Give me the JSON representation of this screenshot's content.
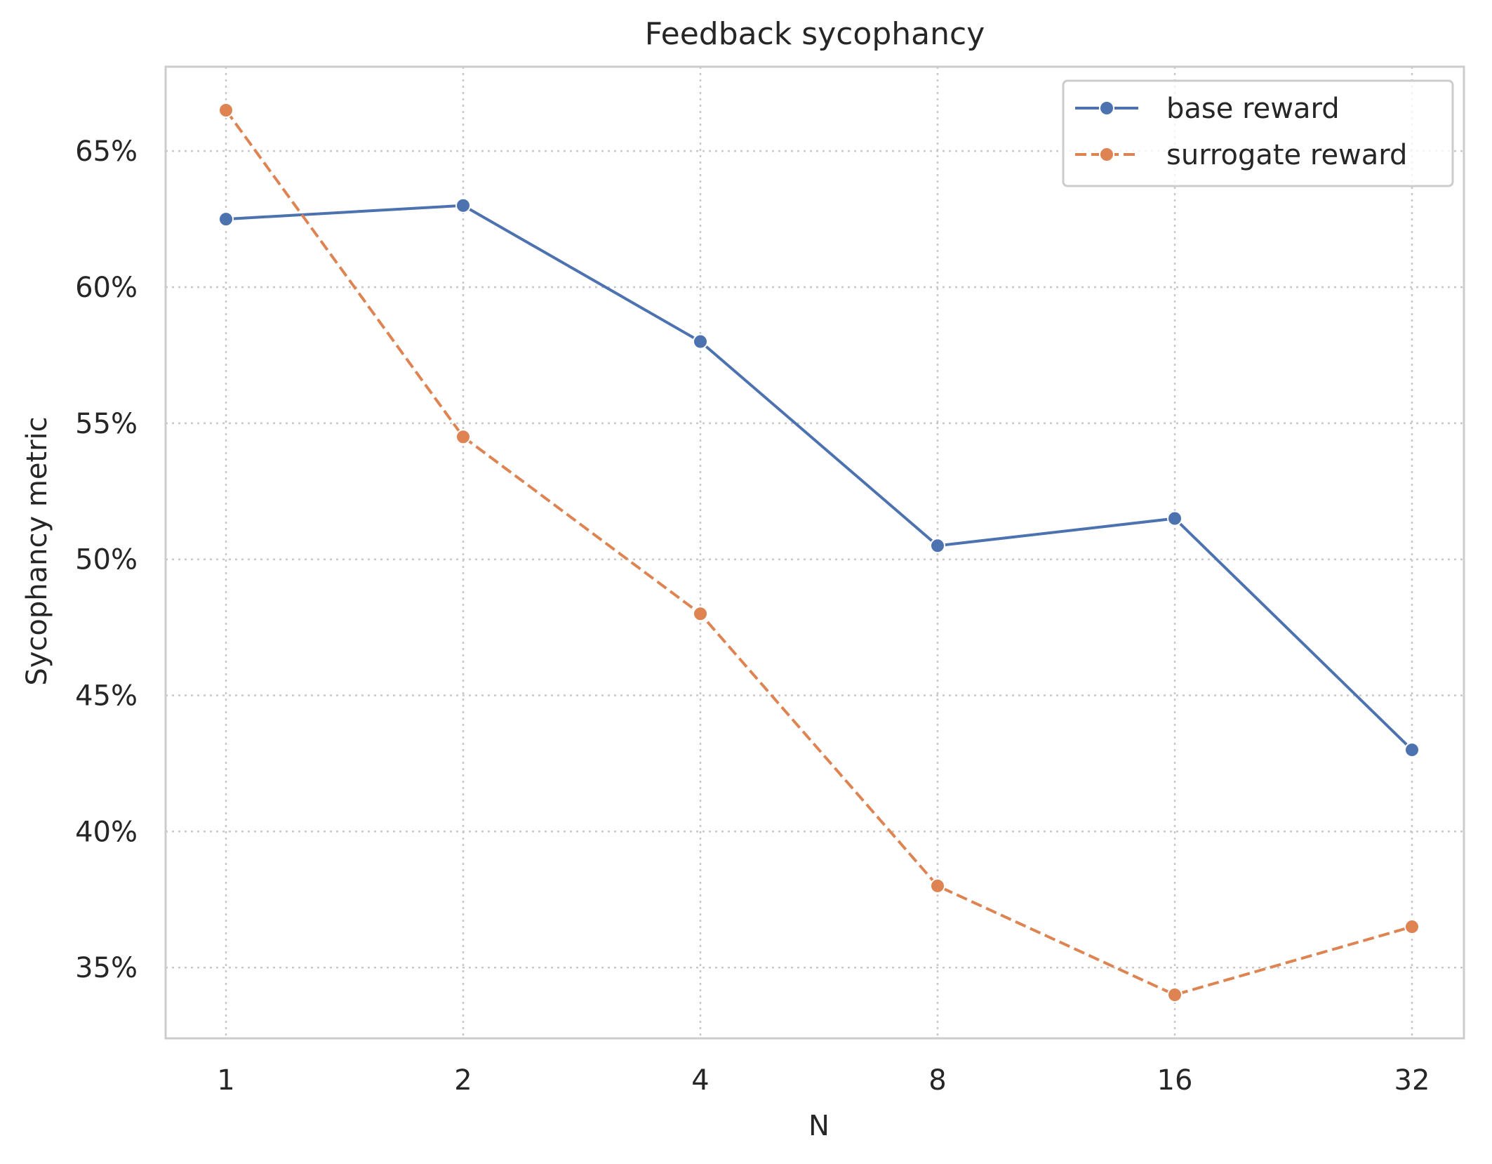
{
  "chart_data": {
    "type": "line",
    "title": "Feedback sycophancy",
    "xlabel": "N",
    "ylabel": "Sycophancy metric",
    "categories": [
      "1",
      "2",
      "4",
      "8",
      "16",
      "32"
    ],
    "x_scale": "log2",
    "y_unit": "%",
    "yticks": [
      35,
      40,
      45,
      50,
      55,
      60,
      65
    ],
    "ylim": [
      32.4,
      68.1
    ],
    "grid": true,
    "grid_style": "dotted",
    "legend_position": "top-right",
    "series": [
      {
        "name": "base reward",
        "color": "#4c72b0",
        "linestyle": "solid",
        "marker": "circle",
        "values": [
          62.5,
          63.0,
          58.0,
          50.5,
          51.5,
          43.0
        ]
      },
      {
        "name": "surrogate reward",
        "color": "#dd8452",
        "linestyle": "dashed",
        "marker": "circle",
        "values": [
          66.5,
          54.5,
          48.0,
          38.0,
          34.0,
          36.5
        ]
      }
    ]
  }
}
